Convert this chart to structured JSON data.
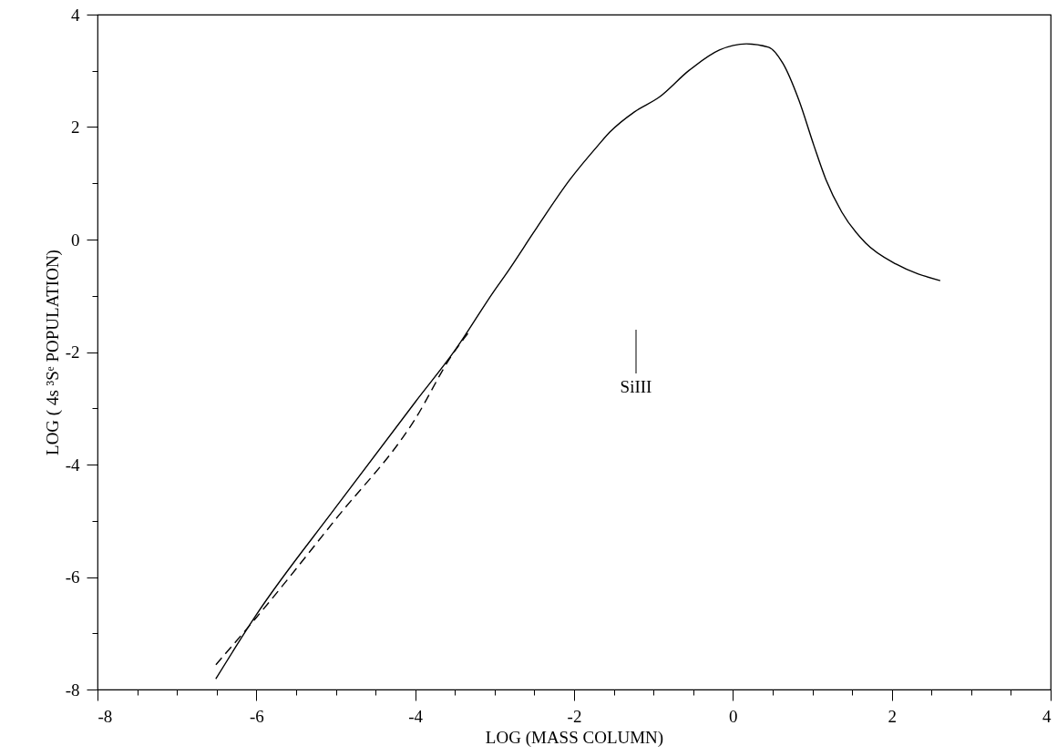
{
  "chart_data": {
    "type": "line",
    "xlabel": "LOG (MASS COLUMN)",
    "ylabel": "LOG ( 4s ³Sᵉ POPULATION)",
    "xlim": [
      -8,
      4
    ],
    "ylim": [
      -8,
      4
    ],
    "xticks": [
      -8,
      {
        "value": -7.5,
        "label": null
      },
      {
        "value": -7,
        "label": null
      },
      {
        "value": -6.5,
        "label": null
      },
      -6,
      {
        "value": -5.5,
        "label": null
      },
      {
        "value": -5,
        "label": null
      },
      {
        "value": -4.5,
        "label": null
      },
      -4,
      {
        "value": -3.5,
        "label": null
      },
      {
        "value": -3,
        "label": null
      },
      {
        "value": -2.5,
        "label": null
      },
      -2,
      {
        "value": -1.5,
        "label": null
      },
      {
        "value": -1,
        "label": null
      },
      {
        "value": -0.5,
        "label": null
      },
      0,
      {
        "value": 0.5,
        "label": null
      },
      {
        "value": 1,
        "label": null
      },
      {
        "value": 1.5,
        "label": null
      },
      2,
      {
        "value": 2.5,
        "label": null
      },
      {
        "value": 3,
        "label": null
      },
      {
        "value": 3.5,
        "label": null
      },
      4
    ],
    "yticks": [
      -8,
      {
        "value": -7,
        "label": null
      },
      -6,
      {
        "value": -5,
        "label": null
      },
      -4,
      {
        "value": -3,
        "label": null
      },
      -2,
      {
        "value": -1,
        "label": null
      },
      0,
      {
        "value": 1,
        "label": null
      },
      2,
      {
        "value": 3,
        "label": null
      },
      4
    ],
    "grid": false,
    "marker": "none",
    "series": [
      {
        "color": "#000000",
        "line_style": "solid",
        "x": [
          -6.51,
          -6,
          -5,
          -4,
          -3.5,
          -3,
          -2.85,
          -2.47,
          -2.05,
          -1.7,
          -1.55,
          -1.24,
          -0.93,
          -0.55,
          -0.17,
          0.17,
          0.45,
          0.63,
          0.83,
          1.02,
          1.17,
          1.37,
          1.67,
          2.06,
          2.61
        ],
        "values": [
          -7.81,
          -6.67,
          -4.76,
          -2.89,
          -1.97,
          -0.9,
          -0.6,
          0.21,
          1.07,
          1.67,
          1.91,
          2.27,
          2.53,
          3.01,
          3.37,
          3.48,
          3.42,
          3.13,
          2.48,
          1.67,
          1.07,
          0.49,
          -0.06,
          -0.44,
          -0.73
        ]
      },
      {
        "color": "#000000",
        "line_style": "dashed",
        "x": [
          -6.51,
          -6,
          -5,
          -4,
          -3.54,
          -3.3
        ],
        "values": [
          -7.56,
          -6.72,
          -4.97,
          -3.19,
          -2.06,
          -1.6
        ]
      }
    ],
    "annotations": [
      "SiIII"
    ]
  }
}
